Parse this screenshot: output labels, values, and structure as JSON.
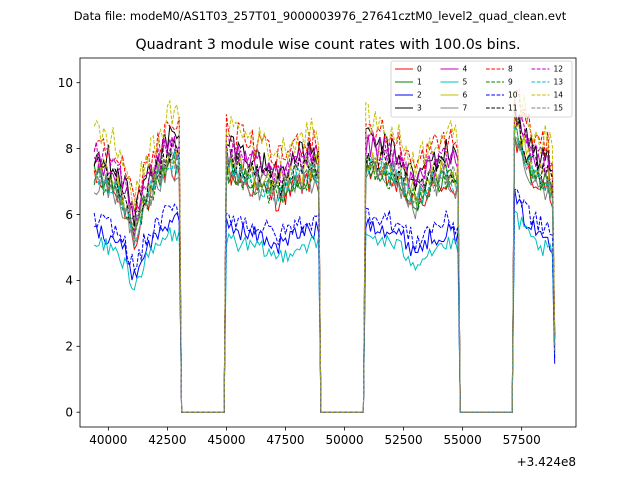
{
  "figure": {
    "suptitle": "Data file: modeM0/AS1T03_257T01_9000003976_27641cztM0_level2_quad_clean.evt"
  },
  "chart_data": {
    "type": "line",
    "title": "Quadrant 3 module wise count rates with 100.0s bins.",
    "xlabel": "",
    "ylabel": "",
    "x_offset_label": "+3.424e8",
    "xlim": [
      38800,
      59800
    ],
    "ylim": [
      -0.45,
      10.75
    ],
    "xticks": [
      40000,
      42500,
      45000,
      47500,
      50000,
      52500,
      55000,
      57500
    ],
    "xtick_labels": [
      "40000",
      "42500",
      "45000",
      "47500",
      "50000",
      "52500",
      "55000",
      "57500"
    ],
    "yticks": [
      0,
      2,
      4,
      6,
      8,
      10
    ],
    "ytick_labels": [
      "0",
      "2",
      "4",
      "6",
      "8",
      "10"
    ],
    "grid": false,
    "legend_position": "top-right",
    "legend_columns": 4,
    "time_range": [
      39400,
      58900
    ],
    "bin_s": 100,
    "gaps": [
      [
        43000,
        45000
      ],
      [
        48900,
        50900
      ],
      [
        54800,
        57200
      ]
    ],
    "segment_profiles": [
      [
        [
          39400,
          1.0
        ],
        [
          40200,
          0.97
        ],
        [
          40800,
          0.86
        ],
        [
          41100,
          0.74
        ],
        [
          41500,
          0.88
        ],
        [
          42000,
          0.97
        ],
        [
          42600,
          1.06
        ],
        [
          43000,
          1.04
        ]
      ],
      [
        [
          45000,
          1.04
        ],
        [
          45800,
          0.99
        ],
        [
          46600,
          0.96
        ],
        [
          47200,
          0.92
        ],
        [
          47800,
          0.97
        ],
        [
          48400,
          1.0
        ],
        [
          48900,
          1.0
        ]
      ],
      [
        [
          50900,
          1.05
        ],
        [
          51700,
          1.02
        ],
        [
          52400,
          0.97
        ],
        [
          53000,
          0.89
        ],
        [
          53600,
          0.96
        ],
        [
          54300,
          1.0
        ],
        [
          54800,
          0.97
        ]
      ],
      [
        [
          57200,
          1.18
        ],
        [
          57700,
          1.06
        ],
        [
          58200,
          0.98
        ],
        [
          58600,
          0.97
        ],
        [
          58900,
          0.9
        ]
      ]
    ],
    "series": [
      {
        "name": "0",
        "color": "#ff0000",
        "dash": "solid",
        "level": 7.0
      },
      {
        "name": "1",
        "color": "#008000",
        "dash": "solid",
        "level": 7.2
      },
      {
        "name": "2",
        "color": "#0000ff",
        "dash": "solid",
        "level": 5.5
      },
      {
        "name": "3",
        "color": "#000000",
        "dash": "solid",
        "level": 7.9
      },
      {
        "name": "4",
        "color": "#bf00bf",
        "dash": "solid",
        "level": 7.7
      },
      {
        "name": "5",
        "color": "#00bfbf",
        "dash": "solid",
        "level": 5.1
      },
      {
        "name": "6",
        "color": "#bfbf00",
        "dash": "solid",
        "level": 7.4
      },
      {
        "name": "7",
        "color": "#808080",
        "dash": "solid",
        "level": 7.0
      },
      {
        "name": "8",
        "color": "#ff0000",
        "dash": "dashed",
        "level": 8.3
      },
      {
        "name": "9",
        "color": "#008000",
        "dash": "dashed",
        "level": 7.1
      },
      {
        "name": "10",
        "color": "#0000ff",
        "dash": "dashed",
        "level": 5.8
      },
      {
        "name": "11",
        "color": "#000000",
        "dash": "dashed",
        "level": 7.5
      },
      {
        "name": "12",
        "color": "#bf00bf",
        "dash": "dashed",
        "level": 7.8
      },
      {
        "name": "13",
        "color": "#00bfbf",
        "dash": "dashed",
        "level": 7.2
      },
      {
        "name": "14",
        "color": "#bfbf00",
        "dash": "dashed",
        "level": 8.5
      },
      {
        "name": "15",
        "color": "#808080",
        "dash": "dashed",
        "level": 7.3
      }
    ]
  }
}
